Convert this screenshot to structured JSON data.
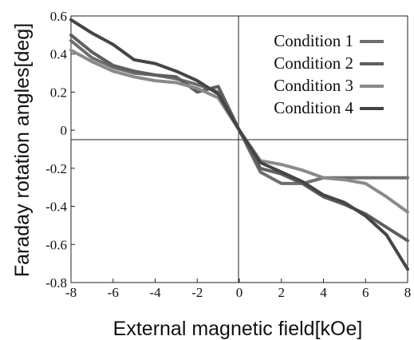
{
  "chart_data": {
    "type": "line",
    "xlabel": "External magnetic field[kOe]",
    "ylabel": "Faraday rotation angles[deg]",
    "xlim": [
      -8,
      8
    ],
    "ylim": [
      -0.8,
      0.6
    ],
    "xticks": [
      "-8",
      "-6",
      "-4",
      "-2",
      "0",
      "2",
      "4",
      "6",
      "8"
    ],
    "yticks": [
      "0.6",
      "0.4",
      "0.2",
      "0",
      "-0.2",
      "-0.4",
      "-0.6",
      "-0.8"
    ],
    "grid": false,
    "legend_position": "top-right",
    "series": [
      {
        "name": "Condition 1",
        "color": "#6e6e6e",
        "x": [
          -8,
          -7,
          -6,
          -5,
          -4,
          -3,
          -2,
          -1,
          0,
          1,
          2,
          3,
          4,
          5,
          6,
          7,
          8
        ],
        "y": [
          0.47,
          0.38,
          0.33,
          0.3,
          0.29,
          0.27,
          0.24,
          0.2,
          0,
          -0.22,
          -0.28,
          -0.28,
          -0.25,
          -0.25,
          -0.25,
          -0.25,
          -0.25
        ]
      },
      {
        "name": "Condition 2",
        "color": "#5f5f5f",
        "x": [
          -8,
          -7,
          -6,
          -5,
          -4,
          -3,
          -2,
          -1,
          0,
          1,
          2,
          3,
          4,
          5,
          6,
          7,
          8
        ],
        "y": [
          0.5,
          0.41,
          0.34,
          0.31,
          0.29,
          0.28,
          0.2,
          0.23,
          0,
          -0.2,
          -0.23,
          -0.28,
          -0.35,
          -0.39,
          -0.44,
          -0.51,
          -0.58
        ]
      },
      {
        "name": "Condition 3",
        "color": "#8a8a8a",
        "x": [
          -8,
          -7,
          -6,
          -5,
          -4,
          -3,
          -2,
          -1,
          0,
          1,
          2,
          3,
          4,
          5,
          6,
          7,
          8
        ],
        "y": [
          0.42,
          0.36,
          0.31,
          0.28,
          0.26,
          0.25,
          0.22,
          0.17,
          0,
          -0.16,
          -0.18,
          -0.21,
          -0.25,
          -0.26,
          -0.28,
          -0.35,
          -0.43
        ]
      },
      {
        "name": "Condition 4",
        "color": "#454545",
        "x": [
          -8,
          -7,
          -6,
          -5,
          -4,
          -3,
          -2,
          -1,
          0,
          1,
          2,
          3,
          4,
          5,
          6,
          7,
          8
        ],
        "y": [
          0.58,
          0.51,
          0.45,
          0.37,
          0.35,
          0.31,
          0.26,
          0.19,
          0,
          -0.17,
          -0.22,
          -0.27,
          -0.34,
          -0.38,
          -0.45,
          -0.55,
          -0.73
        ]
      }
    ]
  }
}
